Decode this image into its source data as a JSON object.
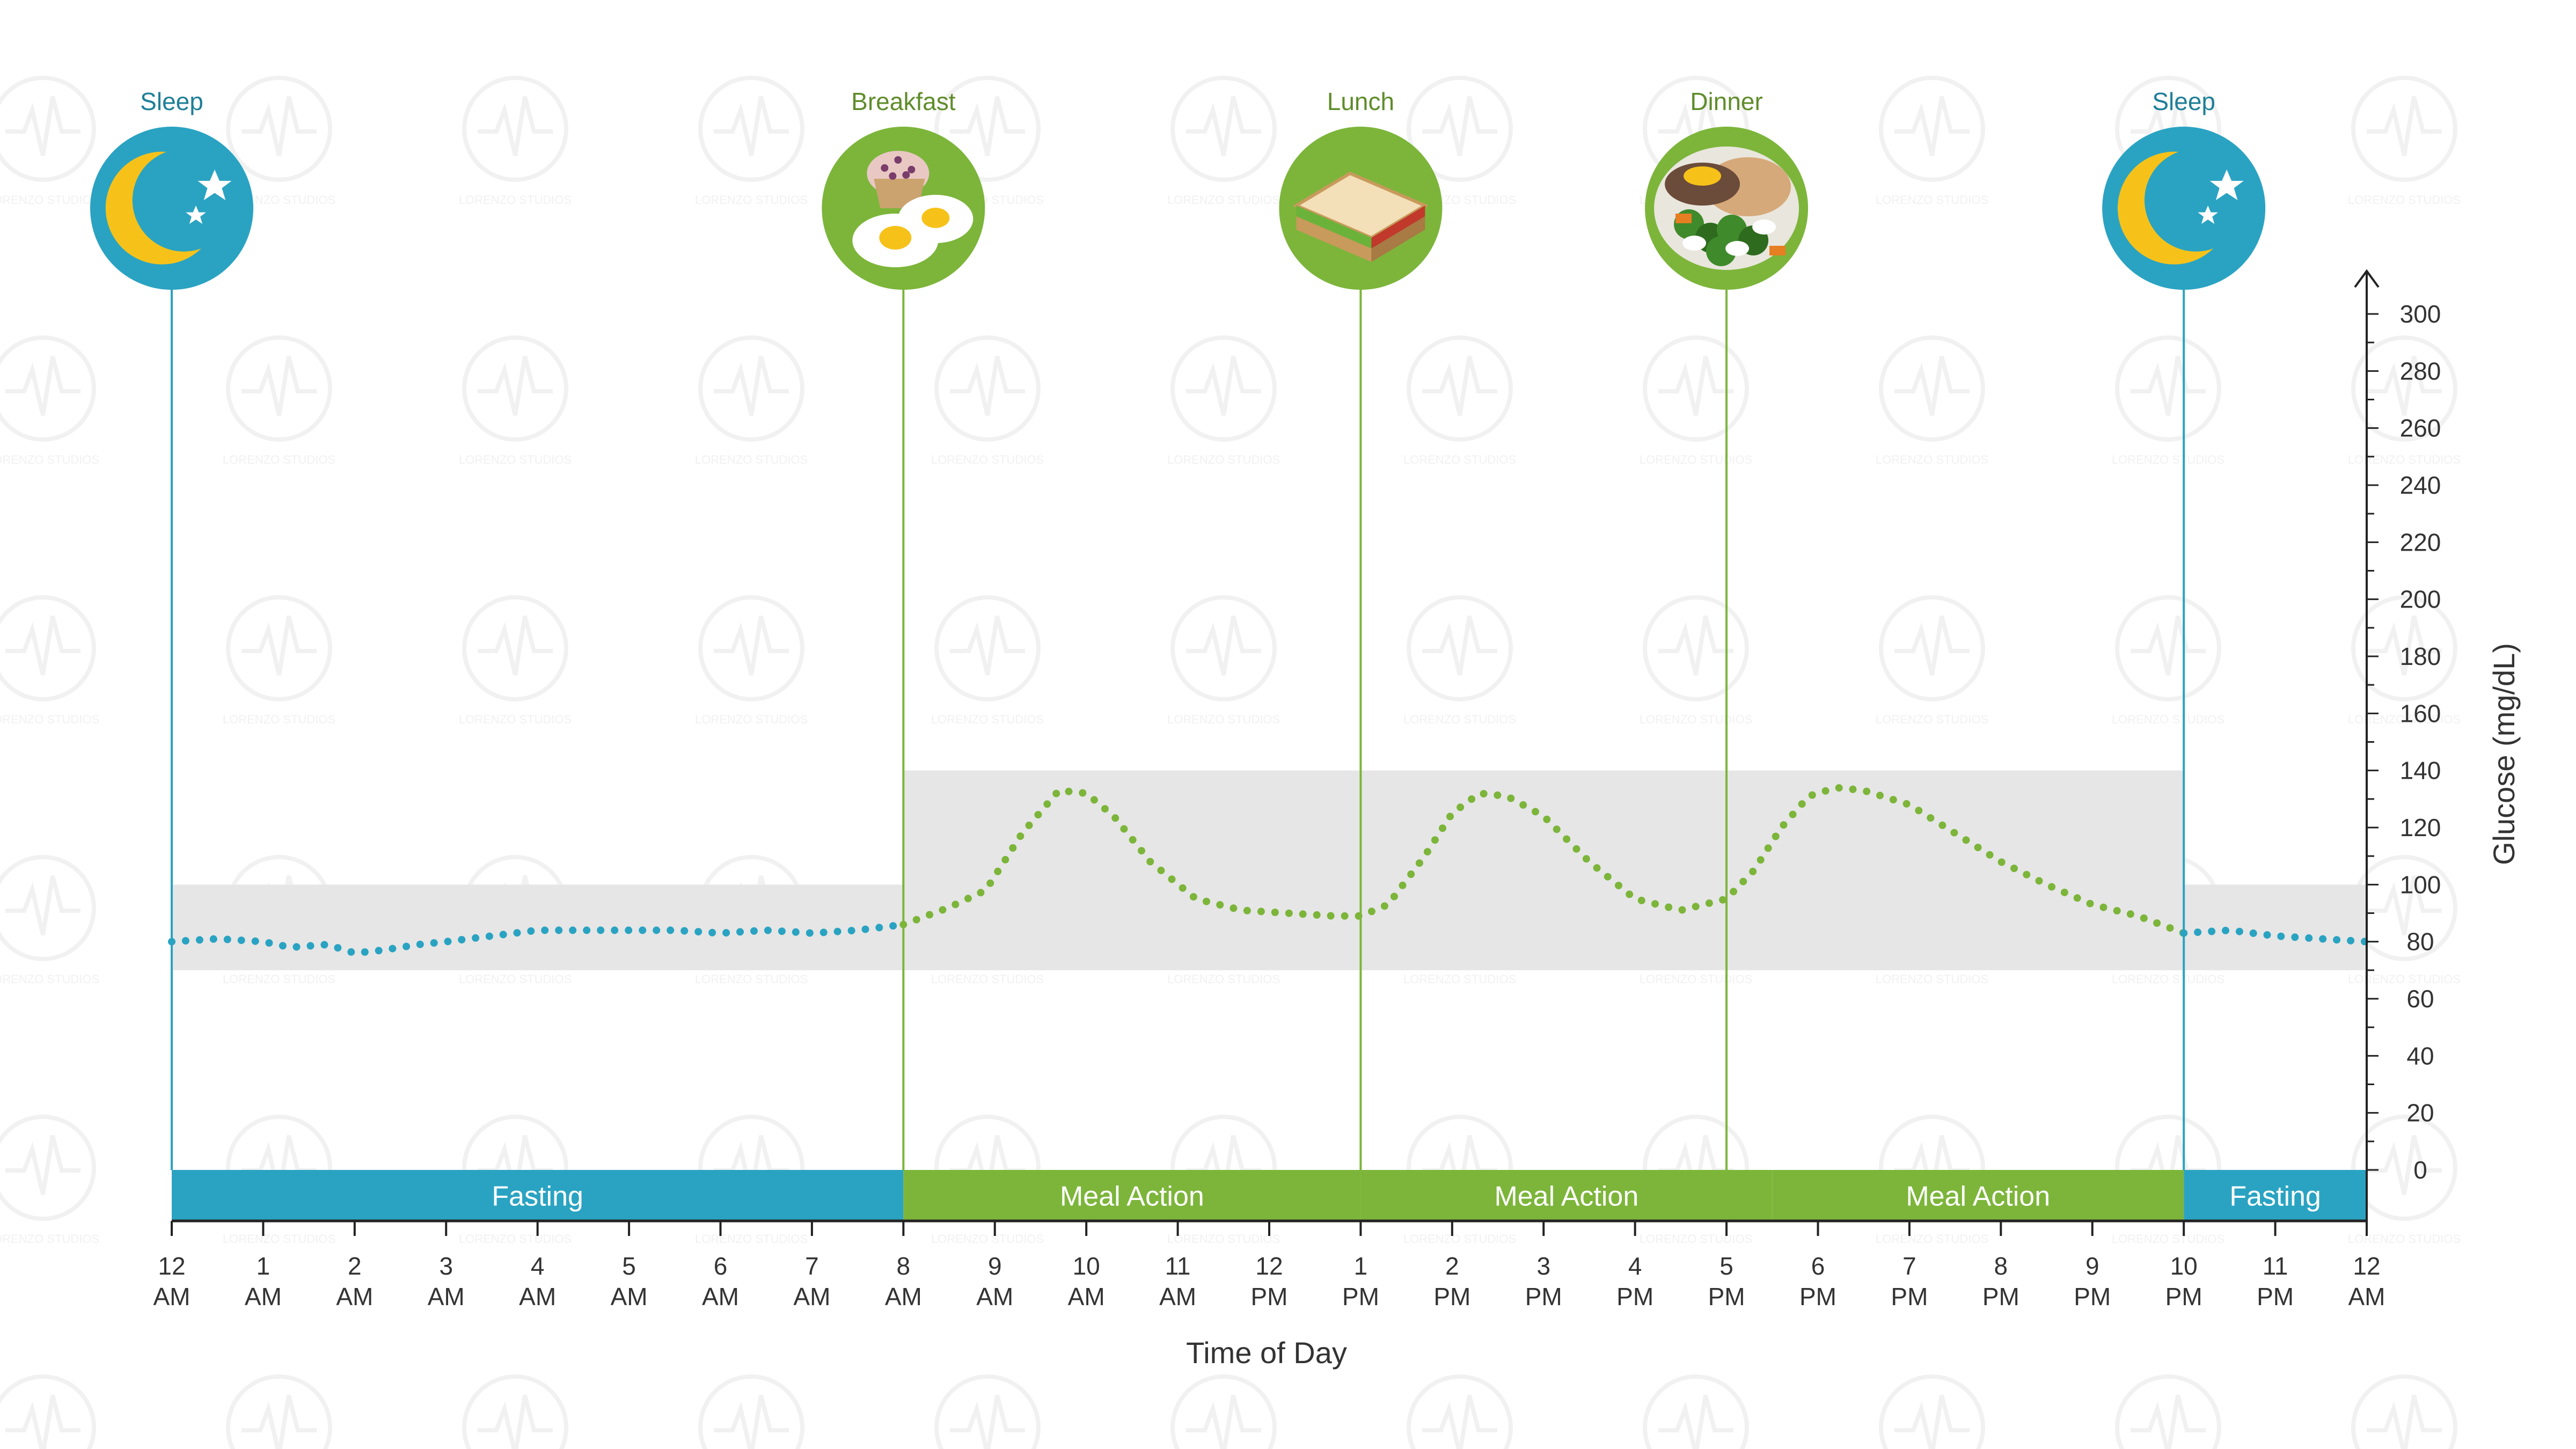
{
  "chart_data": {
    "type": "scatter",
    "title": "",
    "xlabel": "Time of Day",
    "ylabel": "Glucose (mg/dL)",
    "xlim": [
      0,
      24
    ],
    "ylim": [
      0,
      300
    ],
    "y_ticks": [
      0,
      20,
      40,
      60,
      80,
      100,
      120,
      140,
      160,
      180,
      200,
      220,
      240,
      260,
      280,
      300
    ],
    "x_ticks": [
      {
        "x": 0,
        "l1": "12",
        "l2": "AM"
      },
      {
        "x": 1,
        "l1": "1",
        "l2": "AM"
      },
      {
        "x": 2,
        "l1": "2",
        "l2": "AM"
      },
      {
        "x": 3,
        "l1": "3",
        "l2": "AM"
      },
      {
        "x": 4,
        "l1": "4",
        "l2": "AM"
      },
      {
        "x": 5,
        "l1": "5",
        "l2": "AM"
      },
      {
        "x": 6,
        "l1": "6",
        "l2": "AM"
      },
      {
        "x": 7,
        "l1": "7",
        "l2": "AM"
      },
      {
        "x": 8,
        "l1": "8",
        "l2": "AM"
      },
      {
        "x": 9,
        "l1": "9",
        "l2": "AM"
      },
      {
        "x": 10,
        "l1": "10",
        "l2": "AM"
      },
      {
        "x": 11,
        "l1": "11",
        "l2": "AM"
      },
      {
        "x": 12,
        "l1": "12",
        "l2": "PM"
      },
      {
        "x": 13,
        "l1": "1",
        "l2": "PM"
      },
      {
        "x": 14,
        "l1": "2",
        "l2": "PM"
      },
      {
        "x": 15,
        "l1": "3",
        "l2": "PM"
      },
      {
        "x": 16,
        "l1": "4",
        "l2": "PM"
      },
      {
        "x": 17,
        "l1": "5",
        "l2": "PM"
      },
      {
        "x": 18,
        "l1": "6",
        "l2": "PM"
      },
      {
        "x": 19,
        "l1": "7",
        "l2": "PM"
      },
      {
        "x": 20,
        "l1": "8",
        "l2": "PM"
      },
      {
        "x": 21,
        "l1": "9",
        "l2": "PM"
      },
      {
        "x": 22,
        "l1": "10",
        "l2": "PM"
      },
      {
        "x": 23,
        "l1": "11",
        "l2": "PM"
      },
      {
        "x": 24,
        "l1": "12",
        "l2": "AM"
      }
    ],
    "normal_ranges": [
      {
        "x_start": 0,
        "x_end": 8,
        "y_low": 70,
        "y_high": 100
      },
      {
        "x_start": 8,
        "x_end": 22,
        "y_low": 70,
        "y_high": 140
      },
      {
        "x_start": 22,
        "x_end": 24,
        "y_low": 70,
        "y_high": 100
      }
    ],
    "events": [
      {
        "x": 0,
        "label": "Sleep",
        "icon": "moon-stars-icon",
        "color": "#2aa3c2"
      },
      {
        "x": 8,
        "label": "Breakfast",
        "icon": "muffin-eggs-icon",
        "color": "#7cb53a"
      },
      {
        "x": 13,
        "label": "Lunch",
        "icon": "sandwich-icon",
        "color": "#7cb53a"
      },
      {
        "x": 17,
        "label": "Dinner",
        "icon": "dinner-plate-icon",
        "color": "#7cb53a"
      },
      {
        "x": 22,
        "label": "Sleep",
        "icon": "moon-stars-icon",
        "color": "#2aa3c2"
      }
    ],
    "phases": [
      {
        "x_start": 0,
        "x_end": 8,
        "label": "Fasting",
        "color": "#2aa3c2"
      },
      {
        "x_start": 8,
        "x_end": 13,
        "label": "Meal Action",
        "color": "#7cb53a"
      },
      {
        "x_start": 13,
        "x_end": 17.5,
        "label": "Meal Action",
        "color": "#7cb53a"
      },
      {
        "x_start": 17.5,
        "x_end": 22,
        "label": "Meal Action",
        "color": "#7cb53a"
      },
      {
        "x_start": 22,
        "x_end": 24,
        "label": "Fasting",
        "color": "#2aa3c2"
      }
    ],
    "series": [
      {
        "color": "#2aa3c2",
        "points": [
          [
            0,
            80
          ],
          [
            0.5,
            81
          ],
          [
            1,
            80
          ],
          [
            1.3,
            78
          ],
          [
            1.7,
            79
          ],
          [
            2,
            76
          ],
          [
            2.3,
            77
          ],
          [
            2.7,
            79
          ],
          [
            3,
            80
          ],
          [
            3.5,
            82
          ],
          [
            4,
            84
          ],
          [
            4.5,
            84
          ],
          [
            5,
            84
          ],
          [
            5.5,
            84
          ],
          [
            6,
            83
          ],
          [
            6.5,
            84
          ],
          [
            7,
            83
          ],
          [
            7.5,
            84
          ],
          [
            8,
            86
          ]
        ]
      },
      {
        "color": "#7cb53a",
        "points": [
          [
            8,
            86
          ],
          [
            8.5,
            92
          ],
          [
            8.9,
            98
          ],
          [
            9.3,
            118
          ],
          [
            9.7,
            133
          ],
          [
            10,
            132
          ],
          [
            10.3,
            124
          ],
          [
            10.7,
            108
          ],
          [
            11.2,
            95
          ],
          [
            11.7,
            91
          ],
          [
            12.2,
            90
          ],
          [
            12.7,
            89
          ],
          [
            13,
            89
          ],
          [
            13.3,
            93
          ],
          [
            13.7,
            110
          ],
          [
            14,
            125
          ],
          [
            14.3,
            132
          ],
          [
            14.6,
            131
          ],
          [
            15,
            124
          ],
          [
            15.5,
            108
          ],
          [
            16,
            95
          ],
          [
            16.5,
            91
          ],
          [
            17,
            95
          ],
          [
            17.3,
            105
          ],
          [
            17.6,
            120
          ],
          [
            17.9,
            131
          ],
          [
            18.2,
            134
          ],
          [
            18.5,
            133
          ],
          [
            19,
            128
          ],
          [
            19.5,
            118
          ],
          [
            20,
            108
          ],
          [
            20.5,
            100
          ],
          [
            21,
            93
          ],
          [
            21.5,
            89
          ],
          [
            22,
            83
          ]
        ]
      },
      {
        "color": "#2aa3c2",
        "points": [
          [
            22,
            83
          ],
          [
            22.5,
            84
          ],
          [
            23,
            82
          ],
          [
            23.5,
            81
          ],
          [
            24,
            80
          ]
        ]
      }
    ]
  },
  "watermark": "LORENZO STUDIOS"
}
